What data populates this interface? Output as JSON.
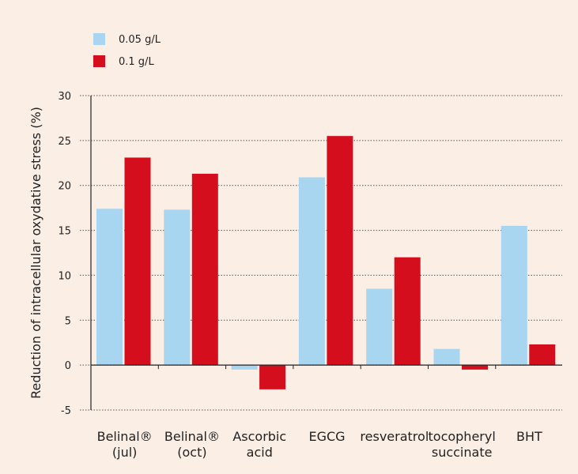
{
  "colors": {
    "background": "#fbeee5",
    "series1": "#a8d5f0",
    "series2": "#d40e1c",
    "grid": "#555555",
    "axis": "#222222"
  },
  "chart_data": {
    "type": "bar",
    "title": "",
    "xlabel": "",
    "ylabel": "Reduction of intracellular oxydative stress (%)",
    "ylim": [
      -5,
      30
    ],
    "yticks": [
      -5,
      0,
      5,
      10,
      15,
      20,
      25,
      30
    ],
    "grid": "horizontal dotted",
    "legend_position": "top-left",
    "categories": [
      [
        "Belinal®",
        "(jul)"
      ],
      [
        "Belinal®",
        "(oct)"
      ],
      [
        "Ascorbic",
        "acid"
      ],
      [
        "EGCG"
      ],
      [
        "resveratrol"
      ],
      [
        "tocopheryl",
        "succinate"
      ],
      [
        "BHT"
      ]
    ],
    "series": [
      {
        "name": "0.05 g/L",
        "color": "#a8d5f0",
        "values": [
          17.4,
          17.3,
          -0.5,
          20.9,
          8.5,
          1.8,
          15.5
        ]
      },
      {
        "name": "0.1 g/L",
        "color": "#d40e1c",
        "values": [
          23.1,
          21.3,
          -2.7,
          25.5,
          12.0,
          -0.5,
          2.3
        ]
      }
    ]
  }
}
